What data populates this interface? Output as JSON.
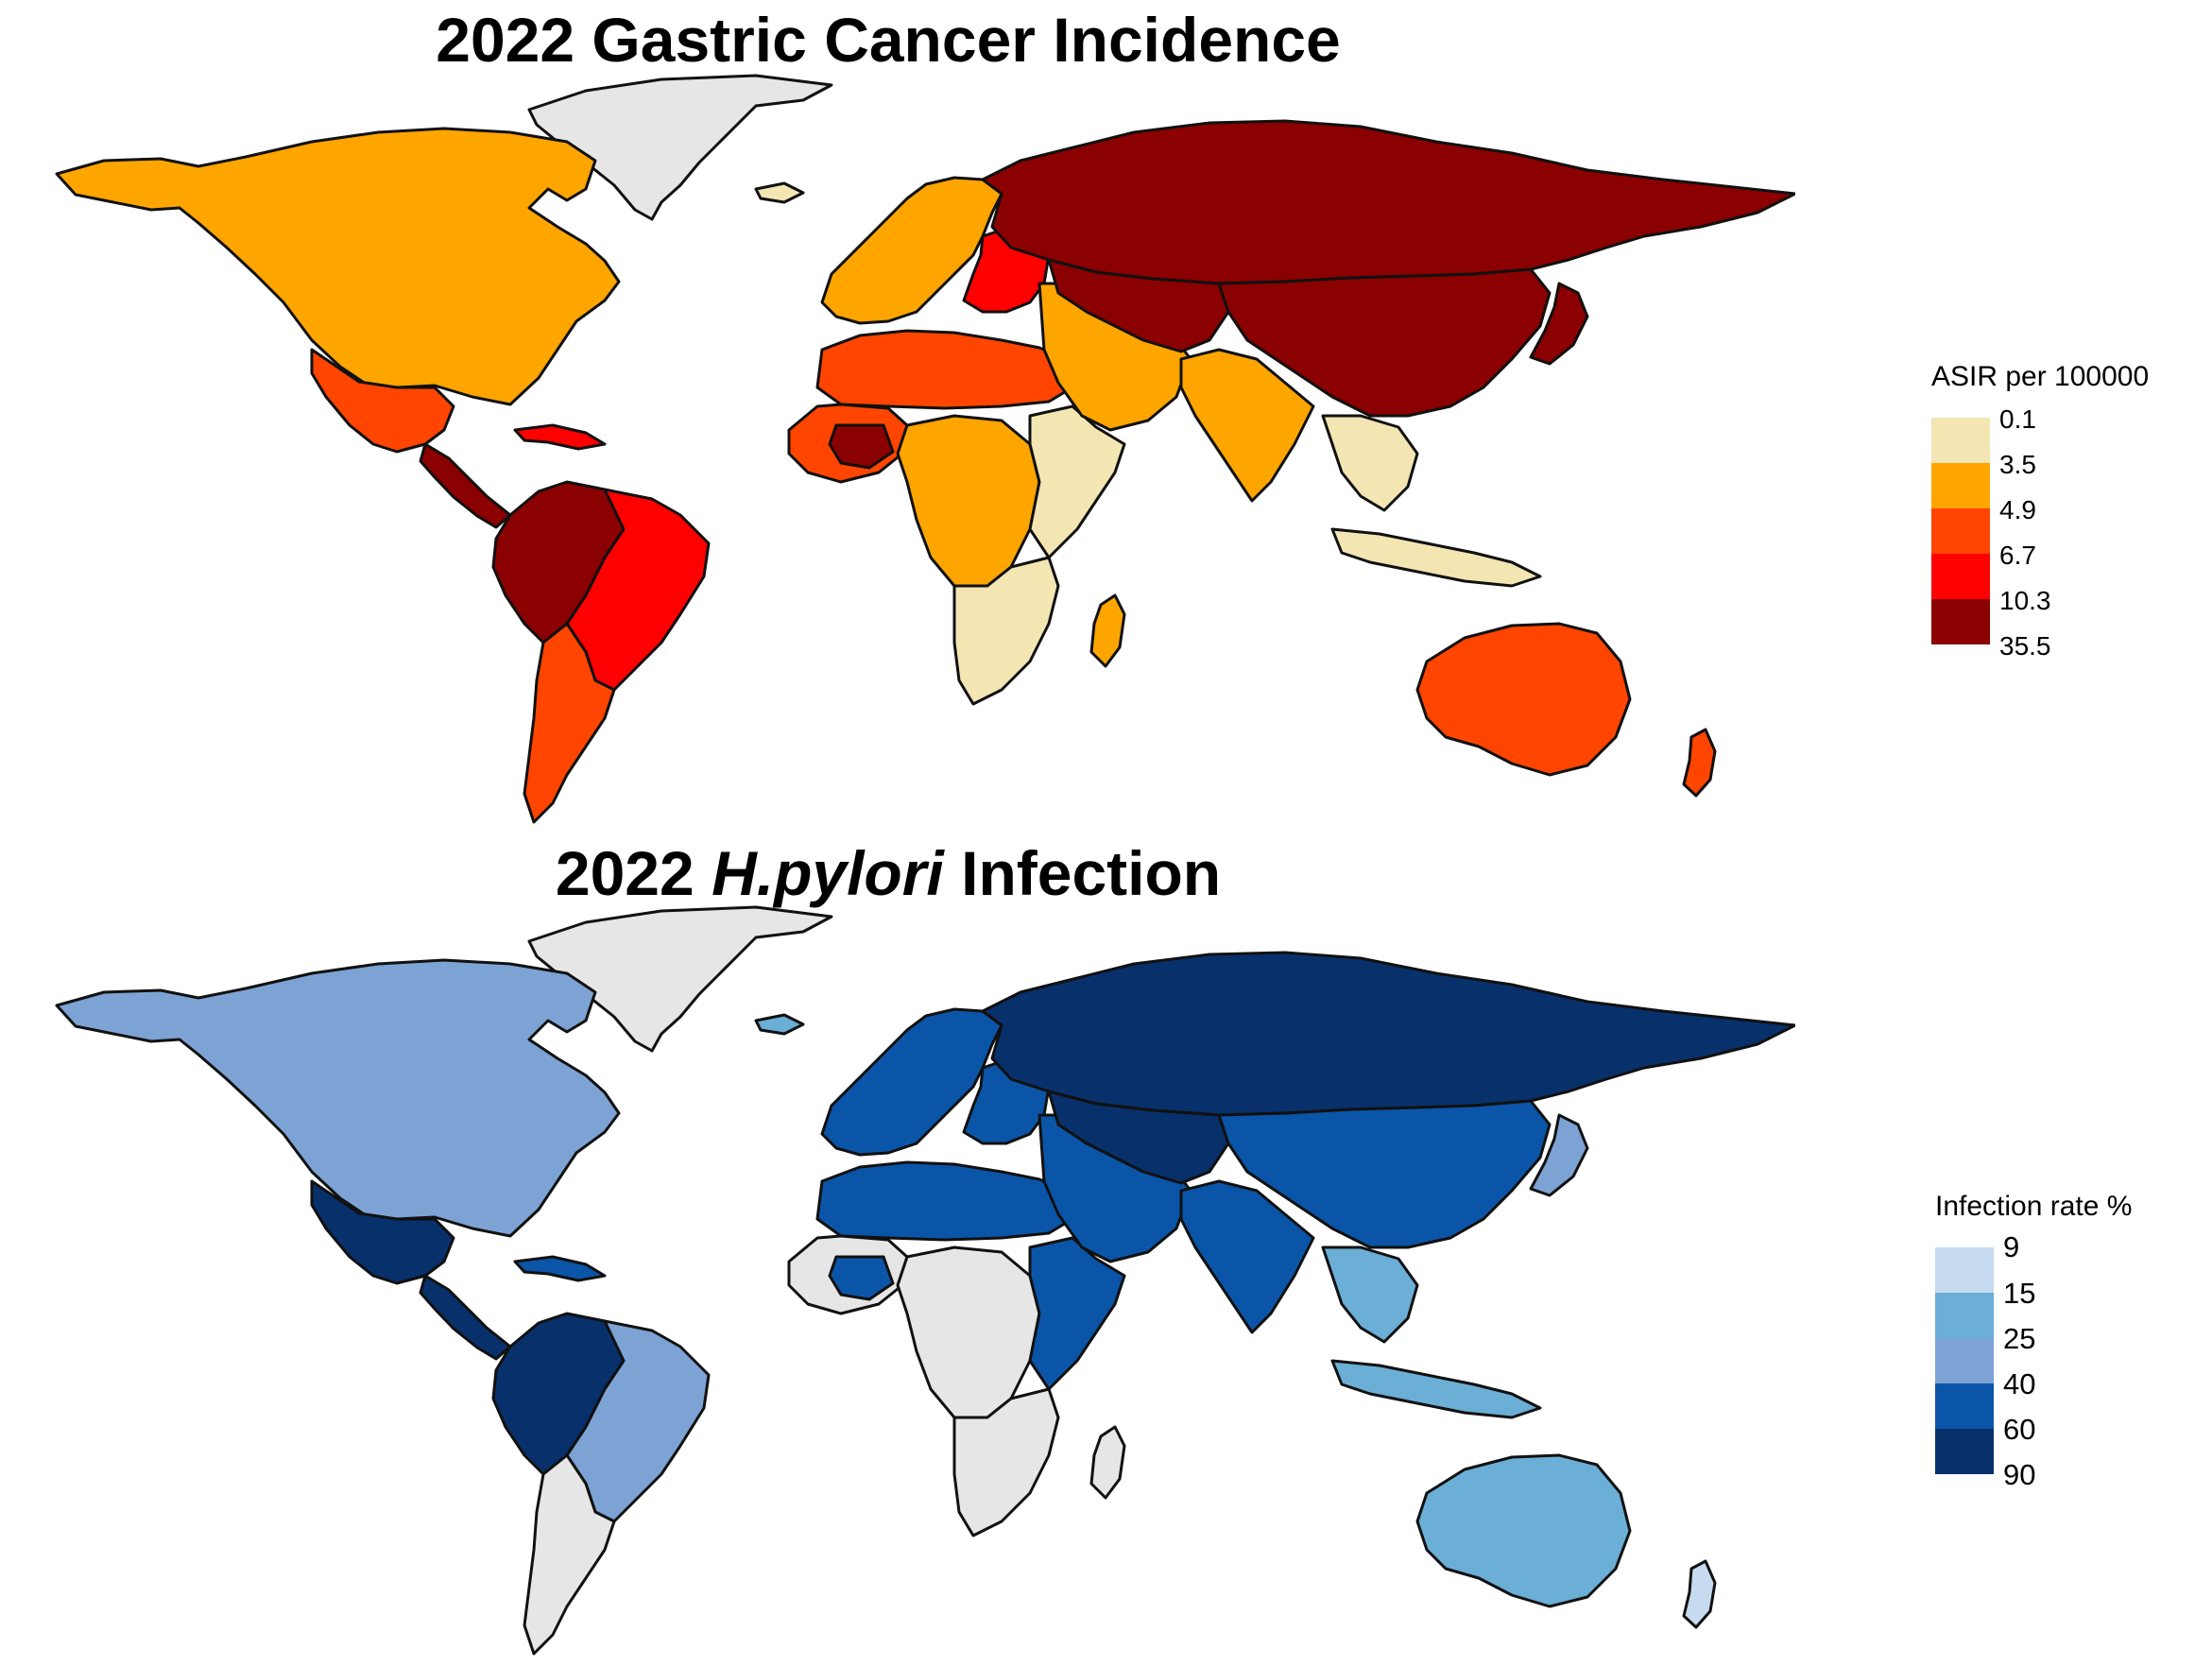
{
  "panels": [
    {
      "title_prefix": "2022 Gastric Cancer Incidence",
      "title_italic": "",
      "title_suffix": "",
      "legend_title": "ASIR per 100000",
      "legend_labels": [
        "0.1",
        "3.5",
        "4.9",
        "6.7",
        "10.3",
        "35.5"
      ],
      "palette": [
        "#f3e6b3",
        "#ffa500",
        "#ff4500",
        "#ff0000",
        "#8b0000"
      ],
      "no_data_color": "#e6e6e6",
      "regions": {
        "greenland": "no_data",
        "north_america": 1,
        "mexico": 2,
        "central_america": 4,
        "caribbean": 3,
        "northern_south_america": 4,
        "brazil": 3,
        "southern_cone": 2,
        "western_europe": 1,
        "eastern_europe": 3,
        "iceland": 0,
        "north_africa": 2,
        "sahel_west_africa": 2,
        "west_africa_dark": 4,
        "central_africa": 1,
        "east_africa": 0,
        "southern_africa": 0,
        "madagascar": 1,
        "middle_east": 1,
        "russia": 4,
        "central_asia": 4,
        "china": 4,
        "india": 1,
        "southeast_asia": 0,
        "indonesia": 0,
        "japan": 4,
        "australia": 2,
        "new_zealand": 2
      }
    },
    {
      "title_prefix": "2022 ",
      "title_italic": "H.pylori",
      "title_suffix": " Infection",
      "legend_title": "Infection rate %",
      "legend_labels": [
        "9",
        "15",
        "25",
        "40",
        "60",
        "90"
      ],
      "palette": [
        "#c6dbef",
        "#6baed6",
        "#7ca3d4",
        "#0b55a8",
        "#08306b"
      ],
      "no_data_color": "#e6e6e6",
      "regions": {
        "greenland": "no_data",
        "north_america": 2,
        "mexico": 4,
        "central_america": 4,
        "caribbean": 3,
        "northern_south_america": 4,
        "brazil": 2,
        "southern_cone": "no_data",
        "western_europe": 3,
        "eastern_europe": 3,
        "iceland": 1,
        "north_africa": 3,
        "sahel_west_africa": "no_data",
        "west_africa_dark": 3,
        "central_africa": "no_data",
        "east_africa": 3,
        "southern_africa": "no_data",
        "madagascar": "no_data",
        "middle_east": 3,
        "russia": 4,
        "central_asia": 4,
        "china": 3,
        "india": 3,
        "southeast_asia": 1,
        "indonesia": 1,
        "japan": 2,
        "australia": 1,
        "new_zealand": 0
      }
    }
  ]
}
